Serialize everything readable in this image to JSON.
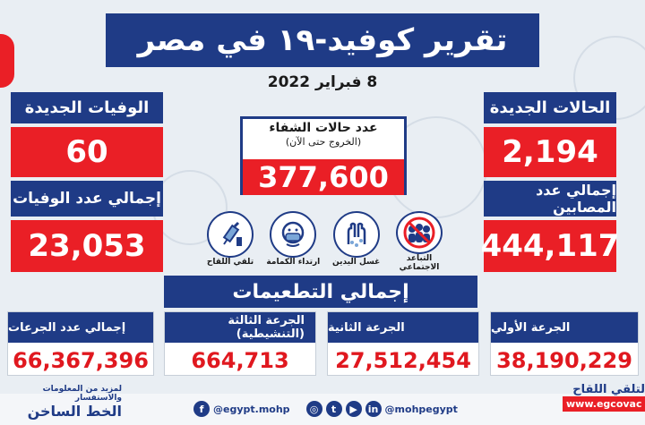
{
  "header": {
    "title": "تقرير كوفيد-١٩ في مصر",
    "date": "8 فبراير 2022"
  },
  "new_cases": {
    "label": "الحالات الجديدة",
    "value": "2,194"
  },
  "total_cases": {
    "label": "إجمالي عدد المصابين",
    "value": "444,117"
  },
  "new_deaths": {
    "label": "الوفيات الجديدة",
    "value": "60"
  },
  "total_deaths": {
    "label": "إجمالي عدد الوفيات",
    "value": "23,053"
  },
  "recovered": {
    "label": "عدد حالات الشفاء",
    "sublabel": "(الخروج حتى الآن)",
    "value": "377,600"
  },
  "precautions": [
    {
      "label": "التباعد الاجتماعي",
      "icon": "social-distancing-icon"
    },
    {
      "label": "غسل اليدين",
      "icon": "hand-washing-icon"
    },
    {
      "label": "ارتداء الكمامة",
      "icon": "face-mask-icon"
    },
    {
      "label": "تلقي اللقاح",
      "icon": "vaccine-syringe-icon"
    }
  ],
  "vaccinations": {
    "title": "إجمالي التطعيمات",
    "items": [
      {
        "label": "الجرعة الأولي",
        "value": "38,190,229"
      },
      {
        "label": "الجرعة الثانية",
        "value": "27,512,454"
      },
      {
        "label": "الجرعة الثالثة (التنشيطية)",
        "value": "664,713"
      },
      {
        "label": "إجمالي عدد الجرعات",
        "value": "66,367,396"
      }
    ]
  },
  "footer": {
    "hotline_note": "لمزيد من المعلومات والاستفسار",
    "hotline": "الخط الساخن",
    "facebook_handle": "@egypt.mohp",
    "social_handle": "@mohpegypt",
    "vaccine_note": "لتلقي اللقاح",
    "vaccine_site": "www.egcovac"
  },
  "colors": {
    "navy": "#1f3b86",
    "red": "#ea1f26",
    "background": "#e9eef3"
  }
}
